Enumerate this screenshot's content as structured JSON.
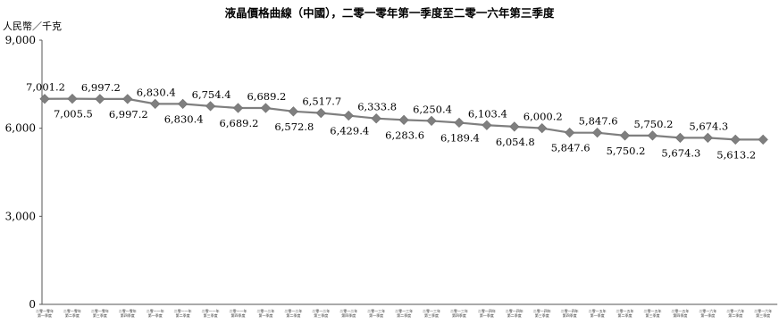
{
  "chart_data": {
    "type": "line",
    "title": "液晶價格曲線（中國），二零一零年第一季度至二零一六年第三季度",
    "ylabel": "人民幣／千克",
    "xlabel": "",
    "ylim": [
      0,
      9000
    ],
    "yticks": [
      "0",
      "3,000",
      "6,000",
      "9,000"
    ],
    "grid": false,
    "legend": "none",
    "line_color": "#7f7f7f",
    "marker": "diamond",
    "categories": [
      [
        "二零一零年",
        "第一季度"
      ],
      [
        "二零一零年",
        "第二季度"
      ],
      [
        "二零一零年",
        "第三季度"
      ],
      [
        "二零一零年",
        "第四季度"
      ],
      [
        "二零一一年",
        "第一季度"
      ],
      [
        "二零一一年",
        "第二季度"
      ],
      [
        "二零一一年",
        "第三季度"
      ],
      [
        "二零一一年",
        "第四季度"
      ],
      [
        "二零一二年",
        "第一季度"
      ],
      [
        "二零一二年",
        "第二季度"
      ],
      [
        "二零一二年",
        "第三季度"
      ],
      [
        "二零一二年",
        "第四季度"
      ],
      [
        "二零一三年",
        "第一季度"
      ],
      [
        "二零一三年",
        "第二季度"
      ],
      [
        "二零一三年",
        "第三季度"
      ],
      [
        "二零一三年",
        "第四季度"
      ],
      [
        "二零一四年",
        "第一季度"
      ],
      [
        "二零一四年",
        "第二季度"
      ],
      [
        "二零一四年",
        "第三季度"
      ],
      [
        "二零一四年",
        "第四季度"
      ],
      [
        "二零一五年",
        "第一季度"
      ],
      [
        "二零一五年",
        "第二季度"
      ],
      [
        "二零一五年",
        "第三季度"
      ],
      [
        "二零一五年",
        "第四季度"
      ],
      [
        "二零一六年",
        "第一季度"
      ],
      [
        "二零一六年",
        "第二季度"
      ],
      [
        "二零一六年",
        "第三季度"
      ]
    ],
    "values": [
      7001.2,
      7005.5,
      6997.2,
      6997.2,
      6830.4,
      6830.4,
      6754.4,
      6689.2,
      6689.2,
      6572.8,
      6517.7,
      6429.4,
      6333.8,
      6283.6,
      6250.4,
      6189.4,
      6103.4,
      6054.8,
      6000.2,
      5847.6,
      5847.6,
      5750.2,
      5750.2,
      5674.3,
      5674.3,
      5613.2,
      5613.2
    ],
    "labels": [
      "7,001.2",
      "7,005.5",
      "6,997.2",
      "6,997.2",
      "6,830.4",
      "6,830.4",
      "6,754.4",
      "6,689.2",
      "6,689.2",
      "6,572.8",
      "6,517.7",
      "6,429.4",
      "6,333.8",
      "6,283.6",
      "6,250.4",
      "6,189.4",
      "6,103.4",
      "6,054.8",
      "6,000.2",
      "5,847.6",
      "5,847.6",
      "5,750.2",
      "5,750.2",
      "5,674.3",
      "5,674.3",
      "5,613.2",
      "5,613.2"
    ],
    "labels_shown": [
      true,
      true,
      true,
      true,
      true,
      true,
      true,
      true,
      true,
      true,
      true,
      true,
      true,
      true,
      true,
      true,
      true,
      true,
      true,
      true,
      true,
      true,
      true,
      true,
      true,
      true,
      false
    ]
  }
}
